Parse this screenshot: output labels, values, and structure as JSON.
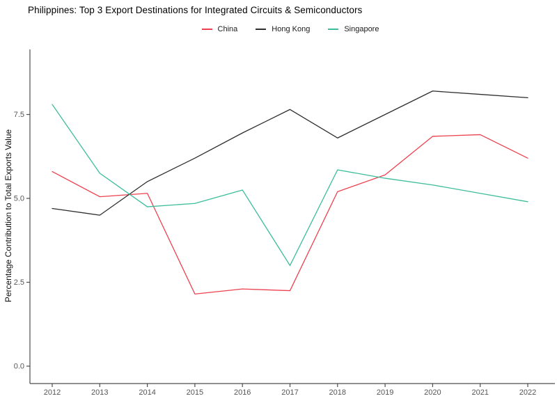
{
  "title": "Philippines: Top 3 Export Destinations for Integrated Circuits & Semiconductors",
  "legend": {
    "position": "top-center",
    "items": [
      {
        "label": "China",
        "color": "#ee404e"
      },
      {
        "label": "Hong Kong",
        "color": "#2e2e2e"
      },
      {
        "label": "Singapore",
        "color": "#3cbd9b"
      }
    ]
  },
  "colors": {
    "axis_line": "#4d4d4d",
    "tick_text": "#555555",
    "china": "#ee404e",
    "hong_kong": "#2e2e2e",
    "singapore": "#3cbd9b"
  },
  "chart_data": {
    "type": "line",
    "title": "Philippines: Top 3 Export Destinations for Integrated Circuits & Semiconductors",
    "xlabel": "",
    "ylabel": "Percentage Contribution to Total Exports Value",
    "x": [
      2012,
      2013,
      2014,
      2015,
      2016,
      2017,
      2018,
      2019,
      2020,
      2021,
      2022
    ],
    "series": [
      {
        "name": "China",
        "color": "#ee404e",
        "values": [
          5.8,
          5.05,
          5.15,
          2.15,
          2.3,
          2.25,
          5.2,
          5.7,
          6.85,
          6.9,
          6.2
        ]
      },
      {
        "name": "Hong Kong",
        "color": "#2e2e2e",
        "values": [
          4.7,
          4.5,
          5.5,
          6.2,
          6.95,
          7.65,
          6.8,
          7.5,
          8.2,
          8.1,
          8.0
        ]
      },
      {
        "name": "Singapore",
        "color": "#3cbd9b",
        "values": [
          7.8,
          5.75,
          4.75,
          4.85,
          5.25,
          3.0,
          5.85,
          5.6,
          5.4,
          5.15,
          4.9
        ]
      }
    ],
    "y_ticks": [
      0.0,
      2.5,
      5.0,
      7.5
    ],
    "y_tick_labels": [
      "0.0",
      "2.5",
      "5.0",
      "7.5"
    ],
    "ylim": [
      0,
      9.4
    ],
    "grid": false,
    "legend_position": "top-center"
  }
}
